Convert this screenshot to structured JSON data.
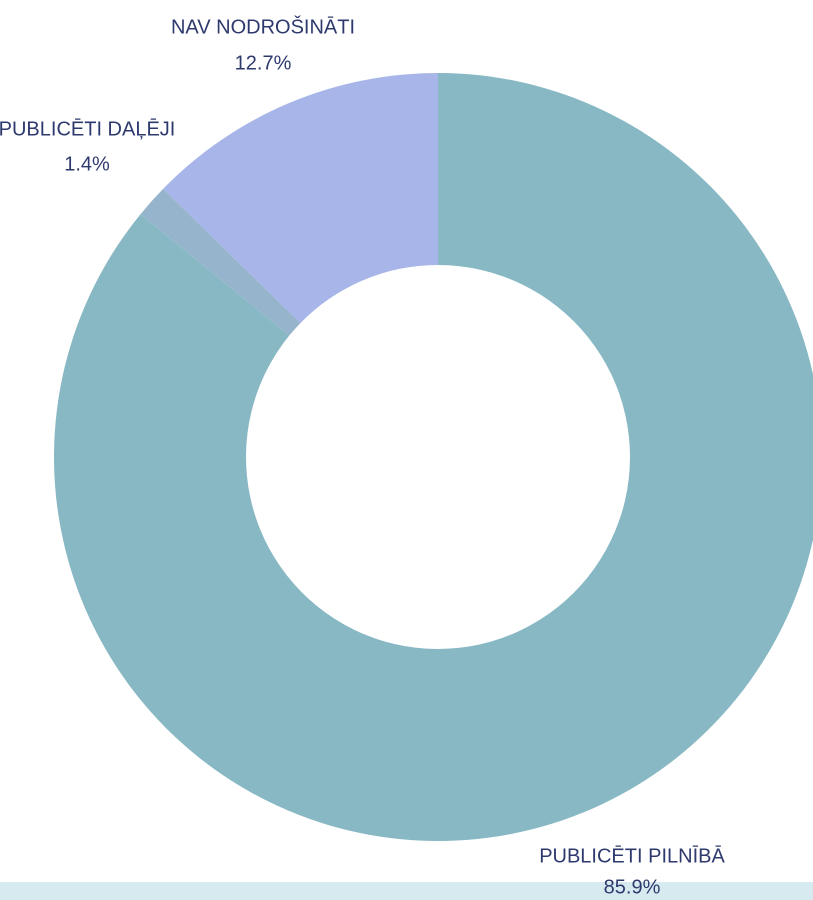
{
  "chart_data": {
    "type": "donut",
    "categories": [
      "PUBLICĒTI PILNĪBĀ",
      "PUBLICĒTI DAĻĒJI",
      "NAV NODROŠINĀTI"
    ],
    "values": [
      85.9,
      1.4,
      12.7
    ],
    "value_labels": [
      "85.9%",
      "1.4%",
      "12.7%"
    ],
    "colors": [
      "#87b8c4",
      "#96b4cc",
      "#a7b5e8"
    ]
  }
}
